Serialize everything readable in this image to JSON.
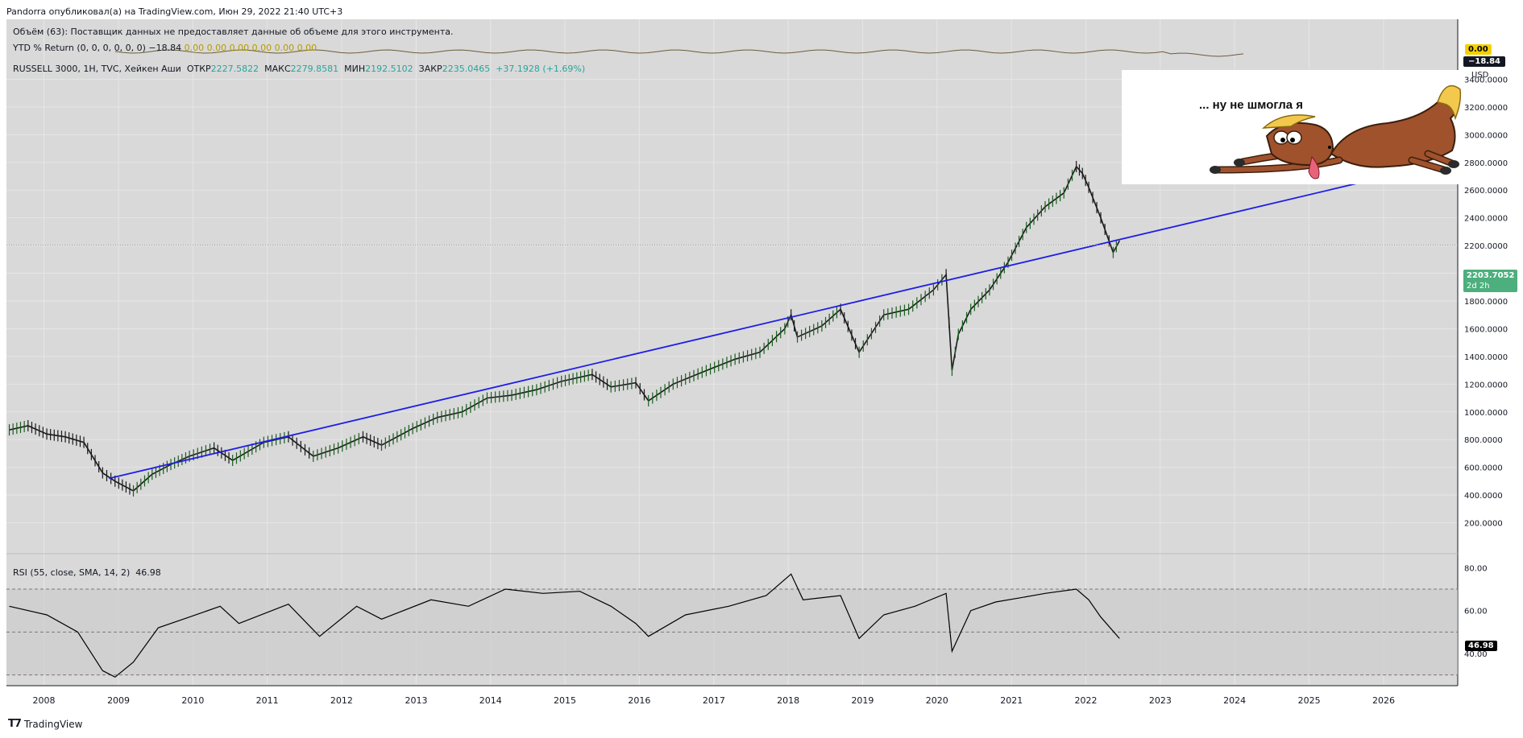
{
  "header": {
    "title": "Pandorra опубликовал(а) на TradingView.com, Июн 29, 2022 21:40 UTC+3"
  },
  "legends": {
    "volume": "Объём (63): Поставщик данных не предоставляет данные об объеме для этого инструмента.",
    "ytd_label": "YTD % Return (0, 0, 0, 0, 0, 0)",
    "ytd_value": "−18.84",
    "ytd_extra": "0.00  0.00  0.00  0.00  0.00  0.00",
    "symbol": "RUSSELL 3000, 1H, TVC, Хейкен Аши",
    "open_label": "ОТКР",
    "open_value": "2227.5822",
    "high_label": "МАКС",
    "high_value": "2279.8581",
    "low_label": "МИН",
    "low_value": "2192.5102",
    "close_label": "ЗАКР",
    "close_value": "2235.0465",
    "change": "+37.1928 (+1.69%)",
    "rsi_label": "RSI (55, close, SMA, 14, 2)",
    "rsi_value": "46.98"
  },
  "badges": {
    "ytd_zero": "0.00",
    "ytd_value": "−18.84",
    "currency": "USD",
    "price": "2203.7052",
    "price_timer": "2d 2h",
    "rsi": "46.98"
  },
  "annotation": {
    "text": "... ну не шмогла я",
    "image": "horse-cartoon-icon"
  },
  "footer": {
    "brand": "TradingView",
    "logo": "tradingview-logo-icon"
  },
  "colors": {
    "background": "#d9d9d9",
    "trendline": "#1e1ee6",
    "price_series": "#1a1a1a",
    "rsi_line": "#000000",
    "price_badge": "#4caf7d",
    "ytd_badge": "#f5d000"
  },
  "chart_data": [
    {
      "type": "line",
      "title": "RUSSELL 3000, 1H, TVC, Хейкен Аши",
      "x_axis_type": "date",
      "x_ticks": [
        "2008",
        "2009",
        "2010",
        "2011",
        "2012",
        "2013",
        "2014",
        "2015",
        "2016",
        "2017",
        "2018",
        "2019",
        "2020",
        "2021",
        "2022",
        "2023",
        "2024",
        "2025",
        "2026"
      ],
      "y_ticks": [
        "200.0000",
        "400.0000",
        "600.0000",
        "800.0000",
        "1000.0000",
        "1200.0000",
        "1400.0000",
        "1600.0000",
        "1800.0000",
        "2000.0000",
        "2200.0000",
        "2400.0000",
        "2600.0000",
        "2800.0000",
        "3000.0000",
        "3200.0000",
        "3400.0000"
      ],
      "ylim": [
        0,
        3600
      ],
      "xlim": [
        "2007-07-01",
        "2026-12-31"
      ],
      "series": [
        {
          "x": [
            "2007-07",
            "2007-10",
            "2008-01",
            "2008-04",
            "2008-07",
            "2008-10",
            "2008-12",
            "2009-03",
            "2009-06",
            "2009-09",
            "2009-12",
            "2010-04",
            "2010-07",
            "2010-12",
            "2011-04",
            "2011-08",
            "2011-12",
            "2012-04",
            "2012-07",
            "2012-12",
            "2013-04",
            "2013-08",
            "2013-12",
            "2014-04",
            "2014-08",
            "2014-12",
            "2015-05",
            "2015-08",
            "2015-12",
            "2016-02",
            "2016-06",
            "2016-12",
            "2017-04",
            "2017-08",
            "2017-12",
            "2018-01",
            "2018-02",
            "2018-06",
            "2018-09",
            "2018-12",
            "2019-04",
            "2019-08",
            "2019-12",
            "2020-02",
            "2020-03",
            "2020-04",
            "2020-06",
            "2020-09",
            "2020-12",
            "2021-03",
            "2021-06",
            "2021-09",
            "2021-11",
            "2021-12",
            "2022-01",
            "2022-03",
            "2022-05",
            "2022-06"
          ],
          "values": [
            870,
            900,
            840,
            820,
            780,
            560,
            500,
            430,
            550,
            620,
            680,
            740,
            650,
            780,
            820,
            680,
            740,
            820,
            760,
            880,
            960,
            1000,
            1100,
            1120,
            1160,
            1220,
            1270,
            1180,
            1210,
            1080,
            1200,
            1310,
            1380,
            1430,
            1600,
            1700,
            1540,
            1620,
            1740,
            1430,
            1700,
            1740,
            1880,
            1990,
            1300,
            1560,
            1740,
            1880,
            2080,
            2330,
            2480,
            2580,
            2770,
            2720,
            2620,
            2400,
            2150,
            2235
          ]
        },
        {
          "name": "",
          "x": [
            "2008-11-15",
            "2026-12-31"
          ],
          "values": [
            520,
            2820
          ]
        }
      ]
    },
    {
      "type": "line",
      "title": "RSI (55, close, SMA, 14, 2)",
      "x_axis_type": "date",
      "y_ticks": [
        "40.00",
        "60.00",
        "80.00"
      ],
      "ylim": [
        25,
        85
      ],
      "bands": [
        30,
        50,
        70
      ],
      "series": [
        {
          "x": [
            "2007-07",
            "2008-01",
            "2008-06",
            "2008-10",
            "2008-12",
            "2009-03",
            "2009-07",
            "2009-12",
            "2010-05",
            "2010-08",
            "2011-04",
            "2011-09",
            "2012-03",
            "2012-07",
            "2013-03",
            "2013-09",
            "2014-03",
            "2014-09",
            "2015-03",
            "2015-08",
            "2015-12",
            "2016-02",
            "2016-08",
            "2017-03",
            "2017-09",
            "2018-01",
            "2018-03",
            "2018-09",
            "2018-12",
            "2019-04",
            "2019-09",
            "2020-02",
            "2020-03",
            "2020-06",
            "2020-10",
            "2021-02",
            "2021-06",
            "2021-11",
            "2022-01",
            "2022-03",
            "2022-06"
          ],
          "values": [
            62,
            58,
            50,
            32,
            29,
            36,
            52,
            57,
            62,
            54,
            63,
            48,
            62,
            56,
            65,
            62,
            70,
            68,
            69,
            62,
            54,
            48,
            58,
            62,
            67,
            77,
            65,
            67,
            47,
            58,
            62,
            68,
            41,
            60,
            64,
            66,
            68,
            70,
            65,
            57,
            46.98
          ]
        }
      ]
    }
  ]
}
